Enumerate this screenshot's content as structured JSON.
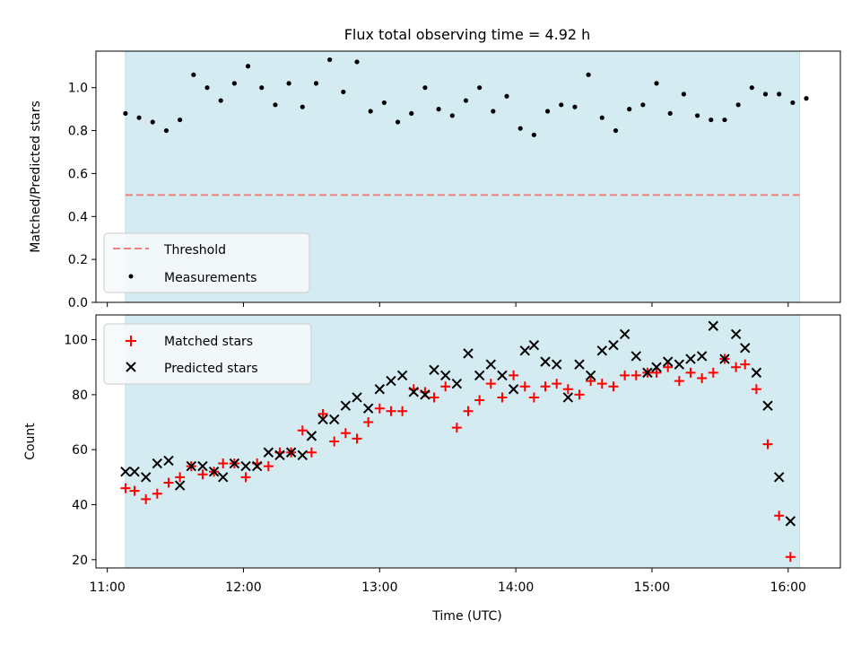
{
  "chart_data": {
    "title": "Flux total observing time = 4.92 h",
    "xlabel": "Time (UTC)",
    "x_ticks": [
      "11:00",
      "12:00",
      "13:00",
      "14:00",
      "15:00",
      "16:00"
    ],
    "xlim": [
      "10:55",
      "16:23"
    ],
    "observing_window": [
      "11:08",
      "16:05"
    ],
    "colors": {
      "window": "#d3ebf1",
      "threshold": "#f08080",
      "matched": "#ff0000",
      "predicted": "#000000",
      "measurement": "#000000"
    },
    "panels": [
      {
        "type": "scatter",
        "ylabel": "Matched/Predicted stars",
        "ylim": [
          0,
          1.17
        ],
        "y_ticks": [
          "0.0",
          "0.2",
          "0.4",
          "0.6",
          "0.8",
          "1.0"
        ],
        "legend_position": "lower-left",
        "legend": [
          "Threshold",
          "Measurements"
        ],
        "threshold": 0.5,
        "x": [
          "11:08",
          "11:14",
          "11:20",
          "11:26",
          "11:32",
          "11:38",
          "11:44",
          "11:50",
          "11:56",
          "12:02",
          "12:08",
          "12:14",
          "12:20",
          "12:26",
          "12:32",
          "12:38",
          "12:44",
          "12:50",
          "12:56",
          "13:02",
          "13:08",
          "13:14",
          "13:20",
          "13:26",
          "13:32",
          "13:38",
          "13:44",
          "13:50",
          "13:56",
          "14:02",
          "14:08",
          "14:14",
          "14:20",
          "14:26",
          "14:32",
          "14:38",
          "14:44",
          "14:50",
          "14:56",
          "15:02",
          "15:08",
          "15:14",
          "15:20",
          "15:26",
          "15:32",
          "15:38",
          "15:44",
          "15:50",
          "15:56",
          "16:02",
          "16:08"
        ],
        "values": [
          0.88,
          0.86,
          0.84,
          0.8,
          0.85,
          1.06,
          1.0,
          0.94,
          1.02,
          1.1,
          1.0,
          0.92,
          1.02,
          0.91,
          1.02,
          1.13,
          0.98,
          1.12,
          0.89,
          0.93,
          0.84,
          0.88,
          1.0,
          0.9,
          0.87,
          0.94,
          1.0,
          0.89,
          0.96,
          0.81,
          0.78,
          0.89,
          0.92,
          0.91,
          1.06,
          0.86,
          0.8,
          0.9,
          0.92,
          1.02,
          0.88,
          0.97,
          0.87,
          0.85,
          0.85,
          0.92,
          1.0,
          0.97,
          0.97,
          0.93,
          0.95
        ]
      },
      {
        "type": "scatter",
        "ylabel": "Count",
        "ylim": [
          17,
          109
        ],
        "y_ticks": [
          "20",
          "40",
          "60",
          "80",
          "100"
        ],
        "legend_position": "upper-left",
        "legend": [
          "Matched stars",
          "Predicted stars"
        ],
        "x": [
          "11:08",
          "11:12",
          "11:17",
          "11:22",
          "11:27",
          "11:32",
          "11:37",
          "11:42",
          "11:47",
          "11:51",
          "11:56",
          "12:01",
          "12:06",
          "12:11",
          "12:16",
          "12:21",
          "12:26",
          "12:30",
          "12:35",
          "12:40",
          "12:45",
          "12:50",
          "12:55",
          "13:00",
          "13:05",
          "13:10",
          "13:15",
          "13:20",
          "13:24",
          "13:29",
          "13:34",
          "13:39",
          "13:44",
          "13:49",
          "13:54",
          "13:59",
          "14:04",
          "14:08",
          "14:13",
          "14:18",
          "14:23",
          "14:28",
          "14:33",
          "14:38",
          "14:43",
          "14:48",
          "14:53",
          "14:58",
          "15:02",
          "15:07",
          "15:12",
          "15:17",
          "15:22",
          "15:27",
          "15:32",
          "15:37",
          "15:41",
          "15:46",
          "15:51",
          "15:56",
          "16:01"
        ],
        "series": [
          {
            "name": "Matched stars",
            "values": [
              46,
              45,
              42,
              44,
              48,
              50,
              54,
              51,
              52,
              55,
              55,
              50,
              55,
              54,
              59,
              59,
              67,
              59,
              73,
              63,
              66,
              64,
              70,
              75,
              74,
              74,
              82,
              81,
              79,
              83,
              68,
              74,
              78,
              84,
              79,
              87,
              83,
              79,
              83,
              84,
              82,
              80,
              85,
              84,
              83,
              87,
              87,
              88,
              88,
              90,
              85,
              88,
              86,
              88,
              93,
              90,
              91,
              82,
              62,
              36,
              21
            ]
          },
          {
            "name": "Predicted stars",
            "values": [
              52,
              52,
              50,
              55,
              56,
              47,
              54,
              54,
              52,
              50,
              55,
              54,
              54,
              59,
              58,
              59,
              58,
              65,
              71,
              71,
              76,
              79,
              75,
              82,
              85,
              87,
              81,
              80,
              89,
              87,
              84,
              95,
              87,
              91,
              87,
              82,
              96,
              98,
              92,
              91,
              79,
              91,
              87,
              96,
              98,
              102,
              94,
              88,
              90,
              92,
              91,
              93,
              94,
              105,
              93,
              102,
              97,
              88,
              76,
              50,
              34
            ]
          }
        ]
      }
    ]
  }
}
